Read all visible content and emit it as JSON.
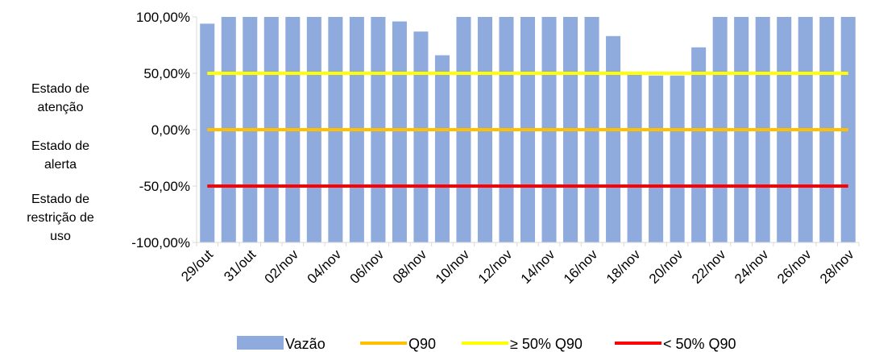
{
  "chart_data": {
    "type": "bar",
    "title": "",
    "xlabel": "",
    "ylabel": "",
    "ylim": [
      -100,
      100
    ],
    "y_ticks": [
      "100,00%",
      "50,00%",
      "0,00%",
      "-50,00%",
      "-100,00%"
    ],
    "y_tick_values": [
      100,
      50,
      0,
      -50,
      -100
    ],
    "categories": [
      "29/out",
      "30/out",
      "31/out",
      "01/nov",
      "02/nov",
      "03/nov",
      "04/nov",
      "05/nov",
      "06/nov",
      "07/nov",
      "08/nov",
      "09/nov",
      "10/nov",
      "11/nov",
      "12/nov",
      "13/nov",
      "14/nov",
      "15/nov",
      "16/nov",
      "17/nov",
      "18/nov",
      "19/nov",
      "20/nov",
      "21/nov",
      "22/nov",
      "23/nov",
      "24/nov",
      "25/nov",
      "26/nov",
      "27/nov",
      "28/nov"
    ],
    "x_tick_labels": [
      "29/out",
      "31/out",
      "02/nov",
      "04/nov",
      "06/nov",
      "08/nov",
      "10/nov",
      "12/nov",
      "14/nov",
      "16/nov",
      "18/nov",
      "20/nov",
      "22/nov",
      "24/nov",
      "26/nov",
      "28/nov"
    ],
    "series": [
      {
        "name": "Vazão",
        "type": "bar",
        "color": "#8faadc",
        "values": [
          94,
          100,
          100,
          100,
          100,
          100,
          100,
          100,
          100,
          96,
          87,
          66,
          100,
          100,
          100,
          100,
          100,
          100,
          100,
          83,
          50,
          48,
          48,
          73,
          100,
          100,
          100,
          100,
          100,
          100,
          100
        ]
      },
      {
        "name": "Q90",
        "type": "line",
        "color": "#ffc000",
        "value": 0
      },
      {
        "name": "≥ 50% Q90",
        "type": "line",
        "color": "#ffff00",
        "value": 50
      },
      {
        "name": "< 50% Q90",
        "type": "line",
        "color": "#ff0000",
        "value": -50
      }
    ],
    "grid": false,
    "legend_position": "bottom"
  },
  "side_labels": [
    {
      "lines": [
        "Estado de",
        "atenção"
      ]
    },
    {
      "lines": [
        "Estado de",
        "alerta"
      ]
    },
    {
      "lines": [
        "Estado de",
        "restrição de",
        "uso"
      ]
    }
  ]
}
